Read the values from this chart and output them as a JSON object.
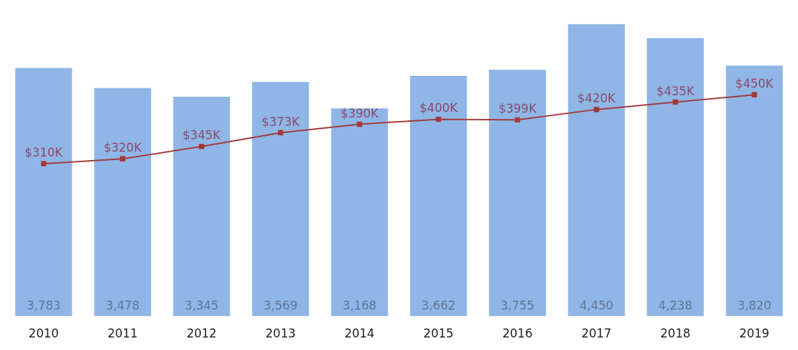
{
  "chart_data": {
    "type": "bar",
    "categories": [
      "2010",
      "2011",
      "2012",
      "2013",
      "2014",
      "2015",
      "2016",
      "2017",
      "2018",
      "2019"
    ],
    "series": [
      {
        "type": "bar",
        "color": "#8fb6e6",
        "values": [
          3783,
          3478,
          3345,
          3569,
          3168,
          3662,
          3755,
          4450,
          4238,
          3820
        ],
        "value_labels": [
          "3,783",
          "3,478",
          "3,345",
          "3,569",
          "3,168",
          "3,662",
          "3,755",
          "4,450",
          "4,238",
          "3,820"
        ]
      },
      {
        "type": "line",
        "axis": "y2",
        "color": "#a33a3a",
        "values": [
          310,
          320,
          345,
          373,
          390,
          400,
          399,
          420,
          435,
          450
        ],
        "value_labels": [
          "$310K",
          "$320K",
          "$345K",
          "$373K",
          "$390K",
          "$400K",
          "$399K",
          "$420K",
          "$435K",
          "$450K"
        ]
      }
    ],
    "tick_labels": "x",
    "grid": false,
    "legend": false,
    "marker": "square",
    "line_style": "solid"
  }
}
